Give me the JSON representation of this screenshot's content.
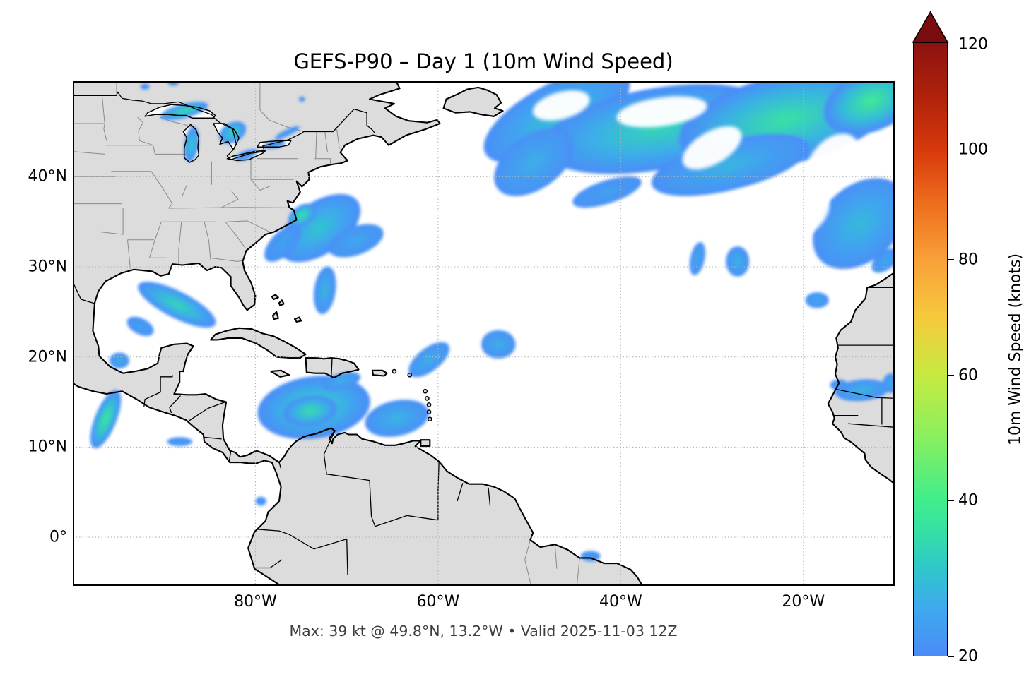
{
  "figure": {
    "title": "GEFS-P90 – Day 1 (10m Wind Speed)",
    "caption": "Max: 39 kt @ 49.8°N, 13.2°W • Valid 2025-11-03 12Z"
  },
  "style": {
    "land": "#dcdcdc",
    "ocean": "#ffffff",
    "coast": "#000000",
    "state_border": "#8a8a8a",
    "grid": "#b5b5b5",
    "caption_color": "#3d3d3d",
    "low_wind_blue": "#4a8cf7"
  },
  "chart_data": {
    "type": "heatmap",
    "title": "GEFS-P90 – Day 1 (10m Wind Speed)",
    "units": "knots",
    "annotation": {
      "max_knots": 39,
      "max_lat": "49.8°N",
      "max_lon": "13.2°W",
      "valid": "2025-11-03 12Z"
    },
    "extent": {
      "lon_min": -100,
      "lon_max": -10,
      "lat_min": -5.4,
      "lat_max": 50.6
    },
    "x_axis": {
      "ticks": [
        {
          "lon": -80,
          "label": "80°W"
        },
        {
          "lon": -60,
          "label": "60°W"
        },
        {
          "lon": -40,
          "label": "40°W"
        },
        {
          "lon": -20,
          "label": "20°W"
        }
      ]
    },
    "y_axis": {
      "ticks": [
        {
          "lat": 40,
          "label": "40°N"
        },
        {
          "lat": 30,
          "label": "30°N"
        },
        {
          "lat": 20,
          "label": "20°N"
        },
        {
          "lat": 10,
          "label": "10°N"
        },
        {
          "lat": 0,
          "label": "0°"
        }
      ]
    },
    "grid": {
      "lons": [
        -80,
        -60,
        -40,
        -20
      ],
      "lats": [
        0,
        10,
        20,
        30,
        40
      ]
    },
    "colorbar": {
      "label": "10m Wind Speed (knots)",
      "vmin": 20,
      "vmax": 120.35,
      "gamma": 0.85,
      "ticks": [
        20,
        40,
        60,
        80,
        100,
        120
      ],
      "over_color": "#7a0c0f",
      "stops": [
        [
          20,
          "#4a8cf7"
        ],
        [
          25,
          "#3fa9ee"
        ],
        [
          30,
          "#2fc6cc"
        ],
        [
          35,
          "#35dfa7"
        ],
        [
          40,
          "#40ee8c"
        ],
        [
          50,
          "#8aef5e"
        ],
        [
          60,
          "#c6ea40"
        ],
        [
          70,
          "#f6c93d"
        ],
        [
          80,
          "#f9a03a"
        ],
        [
          90,
          "#ee6f1e"
        ],
        [
          100,
          "#d8390c"
        ],
        [
          110,
          "#b0220a"
        ],
        [
          120,
          "#8e1310"
        ]
      ]
    },
    "features": [
      [
        "natl-swath-west",
        -47.0,
        46.8,
        9.0,
        3.6,
        -28,
        29
      ],
      [
        "natl-swath-central",
        -36.0,
        45.3,
        13.0,
        4.6,
        -10,
        33
      ],
      [
        "natl-swath-east",
        -22.0,
        46.3,
        12.0,
        5.0,
        -12,
        36
      ],
      [
        "natl-max-core",
        -12.6,
        48.4,
        5.5,
        3.4,
        -22,
        39
      ],
      [
        "natl-lower-arm",
        -28.0,
        41.3,
        9.0,
        2.8,
        -14,
        27
      ],
      [
        "natl-se-arm",
        -13.8,
        34.8,
        6.0,
        4.2,
        -42,
        28
      ],
      [
        "natl-sw-lobe",
        -49.5,
        41.6,
        5.0,
        3.0,
        -35,
        26
      ],
      [
        "natl-south-fringe",
        -41.5,
        38.3,
        4.0,
        1.3,
        -18,
        24
      ],
      [
        "hatteras-low",
        -73.0,
        34.3,
        5.2,
        2.9,
        -35,
        30
      ],
      [
        "hatteras-core",
        -74.9,
        35.7,
        1.7,
        1.1,
        -35,
        36
      ],
      [
        "hatteras-east-ext",
        -69.0,
        32.9,
        3.2,
        1.6,
        -20,
        25
      ],
      [
        "carolina-tail",
        -77.0,
        32.6,
        2.6,
        1.3,
        -45,
        24
      ],
      [
        "bahamas-streak",
        -72.4,
        27.4,
        1.2,
        2.7,
        8,
        27
      ],
      [
        "gulf-of-mexico-jet",
        -88.6,
        25.8,
        4.8,
        1.5,
        27,
        33
      ],
      [
        "gulf-sw-tail",
        -92.6,
        23.4,
        1.6,
        0.9,
        27,
        24
      ],
      [
        "veracruz-coast",
        -94.9,
        19.6,
        1.1,
        0.9,
        0,
        26
      ],
      [
        "papagayo-jet",
        -96.4,
        13.1,
        1.2,
        3.5,
        22,
        38
      ],
      [
        "pacific-strip",
        -88.3,
        10.6,
        1.4,
        0.5,
        0,
        23
      ],
      [
        "colombia-pacific-speck",
        -79.4,
        4.0,
        0.6,
        0.5,
        0,
        22
      ],
      [
        "caribbean-low",
        -73.6,
        14.4,
        6.3,
        3.5,
        -8,
        33
      ],
      [
        "caribbean-core",
        -74.0,
        14.0,
        3.0,
        1.7,
        -8,
        35
      ],
      [
        "caribbean-east-ext",
        -64.5,
        13.2,
        3.6,
        2.0,
        -12,
        27
      ],
      [
        "hispaniola-south",
        -70.6,
        17.3,
        2.2,
        0.9,
        -15,
        26
      ],
      [
        "ne-of-antilles",
        -61.0,
        19.7,
        2.7,
        1.3,
        -38,
        26
      ],
      [
        "central-atl-blob",
        -53.4,
        21.4,
        1.9,
        1.6,
        0,
        26
      ],
      [
        "midatl-30n-west",
        -31.6,
        30.9,
        0.8,
        1.9,
        12,
        25
      ],
      [
        "midatl-30n-east",
        -27.2,
        30.6,
        1.3,
        1.7,
        0,
        26
      ],
      [
        "canary-offshore",
        -18.5,
        26.3,
        1.3,
        0.9,
        0,
        25
      ],
      [
        "morocco-offshore",
        -11.0,
        30.7,
        1.8,
        1.0,
        -38,
        25
      ],
      [
        "sahel-winds",
        -13.6,
        16.3,
        3.0,
        1.2,
        -5,
        27
      ],
      [
        "senegal-coast",
        -16.1,
        16.9,
        1.0,
        0.6,
        0,
        24
      ],
      [
        "mali-east-edge",
        -10.4,
        17.1,
        0.9,
        1.1,
        0,
        25
      ],
      [
        "brazil-coast-speck",
        -43.3,
        -2.1,
        1.1,
        0.6,
        0,
        23
      ],
      [
        "lake-superior",
        -87.8,
        47.3,
        2.7,
        0.8,
        -14,
        35
      ],
      [
        "lake-michigan",
        -87.0,
        43.6,
        0.8,
        2.0,
        8,
        31
      ],
      [
        "lake-huron",
        -82.5,
        44.9,
        1.6,
        1.1,
        -30,
        33
      ],
      [
        "lake-erie",
        -81.0,
        42.4,
        1.3,
        0.5,
        -22,
        23
      ],
      [
        "lake-ontario",
        -77.9,
        43.6,
        1.2,
        0.45,
        -12,
        23
      ],
      [
        "st-lawrence-strip",
        -76.5,
        44.9,
        1.5,
        0.35,
        -25,
        24
      ],
      [
        "border-speck-west",
        -92.1,
        50.0,
        0.5,
        0.35,
        0,
        22
      ],
      [
        "quebec-speck",
        -74.9,
        48.6,
        0.35,
        0.3,
        0,
        22
      ],
      [
        "border-speck-nw",
        -89.0,
        50.4,
        0.6,
        0.3,
        0,
        22
      ]
    ],
    "calm_patches": [
      [
        "calm-hole-1",
        -46.5,
        47.9,
        3.2,
        1.5,
        -15
      ],
      [
        "calm-hole-2",
        -35.5,
        47.2,
        5.0,
        1.6,
        -8
      ],
      [
        "calm-hole-3",
        -30.0,
        43.2,
        3.6,
        1.8,
        -30
      ],
      [
        "calm-hole-4",
        -16.8,
        41.6,
        3.6,
        2.4,
        -50
      ],
      [
        "calm-hole-5",
        -21.0,
        35.6,
        4.2,
        2.6,
        -30
      ]
    ]
  }
}
